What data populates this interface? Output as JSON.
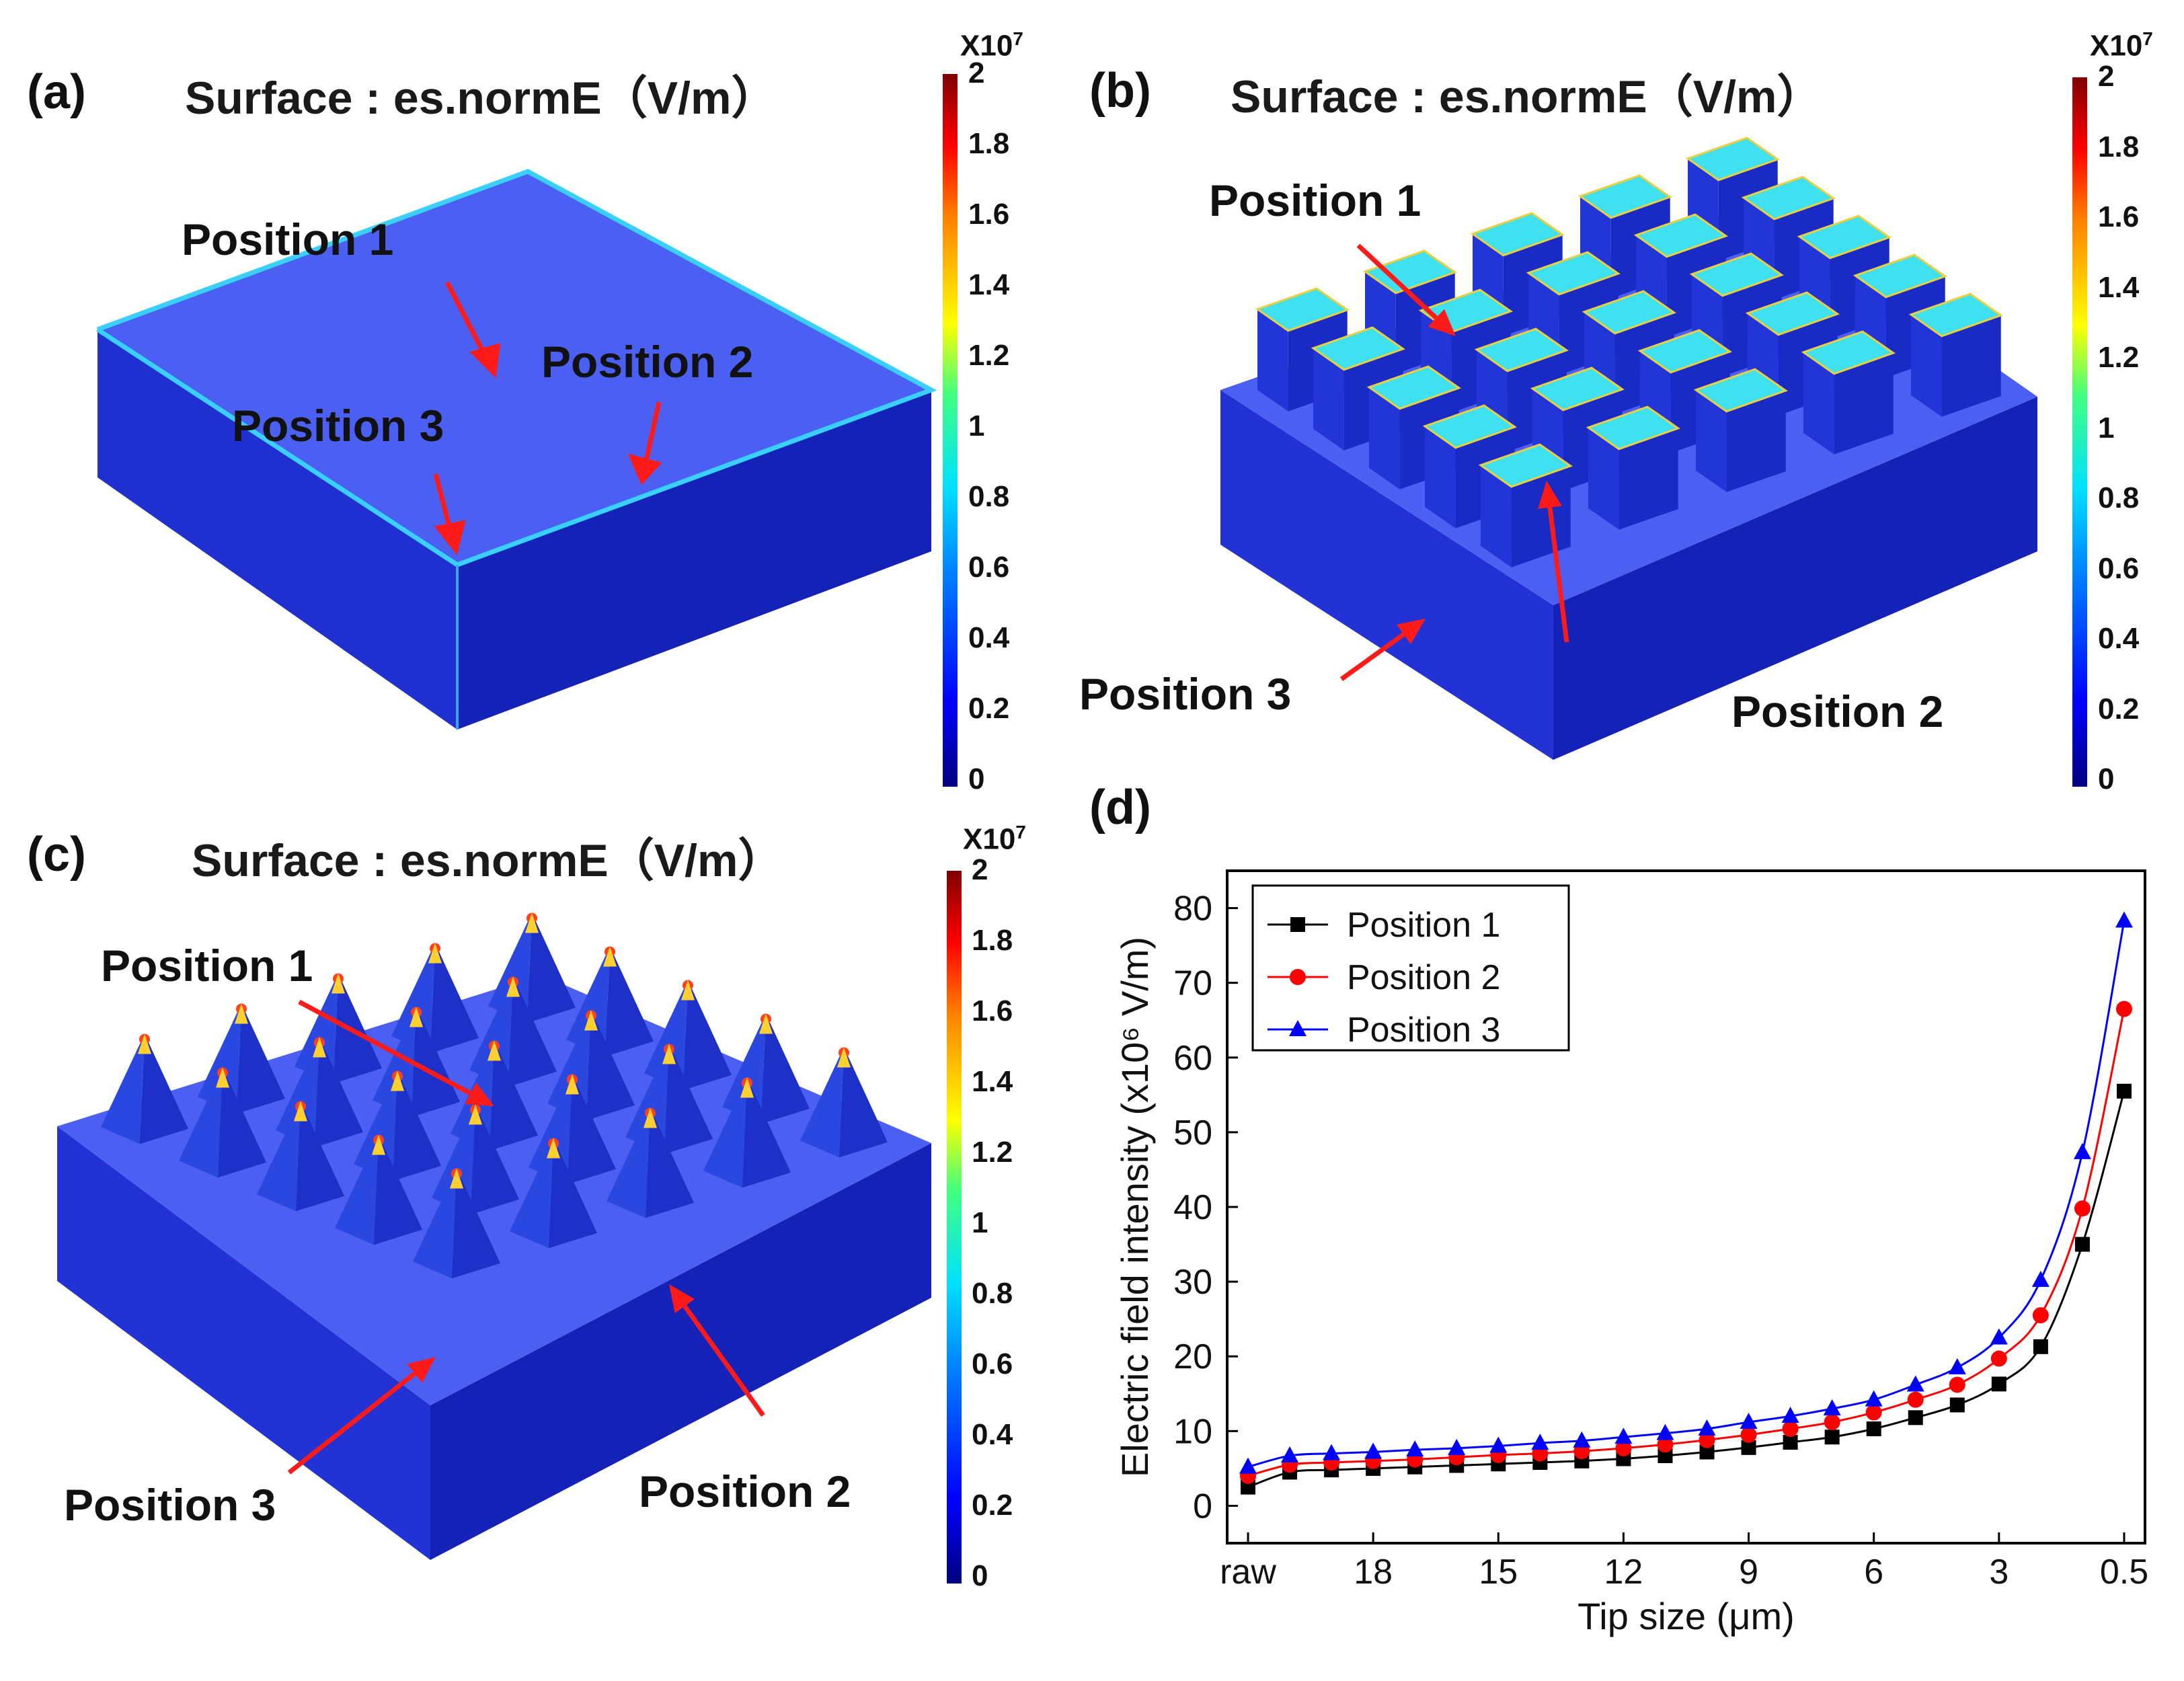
{
  "panels": {
    "a": {
      "label": "(a)",
      "title": "Surface : es.normE（V/m）",
      "positions": [
        "Position 1",
        "Position 2",
        "Position 3"
      ]
    },
    "b": {
      "label": "(b)",
      "title": "Surface : es.normE（V/m）",
      "positions": [
        "Position 1",
        "Position 2",
        "Position 3"
      ]
    },
    "c": {
      "label": "(c)",
      "title": "Surface : es.normE（V/m）",
      "positions": [
        "Position 1",
        "Position 2",
        "Position 3"
      ]
    },
    "d": {
      "label": "(d)"
    }
  },
  "colorbar": {
    "exponent_base": "X10",
    "exponent_power": "7",
    "ticks": [
      "2",
      "1.8",
      "1.6",
      "1.4",
      "1.2",
      "1",
      "0.8",
      "0.6",
      "0.4",
      "0.2",
      "0"
    ]
  },
  "colors": {
    "surface_top": "#4a5cf0",
    "surface_side": "#1a26c8",
    "surface_dark": "#0d18a0",
    "edge_glow": "#39d0ff",
    "arrow": "#ff1a1a",
    "series1": "#000000",
    "series2": "#ff0000",
    "series3": "#0000ff"
  },
  "chart_data": {
    "type": "line",
    "title": "",
    "xlabel": "Tip size (μm)",
    "ylabel": "Electric field intensity (x10⁶ V/m)",
    "ylim": [
      -5,
      85
    ],
    "yticks": [
      0,
      10,
      20,
      30,
      40,
      50,
      60,
      70,
      80
    ],
    "x_index": [
      0,
      1,
      2,
      3,
      4,
      5,
      6,
      7,
      8,
      9,
      10,
      11,
      12,
      13,
      14,
      15,
      16,
      17,
      18,
      19,
      20,
      21
    ],
    "xtick_positions": [
      0,
      3,
      6,
      9,
      12,
      15,
      18,
      21
    ],
    "xtick_labels": [
      "raw",
      "18",
      "15",
      "12",
      "9",
      "6",
      "3",
      "0.5"
    ],
    "legend_position": "top-left",
    "series": [
      {
        "name": "Position 1",
        "marker": "square",
        "values": [
          2.5,
          4.5,
          4.8,
          5.0,
          5.2,
          5.4,
          5.6,
          5.8,
          6.0,
          6.3,
          6.7,
          7.2,
          7.8,
          8.5,
          9.2,
          10.3,
          11.8,
          13.5,
          16.3,
          21.3,
          35.0,
          55.5
        ]
      },
      {
        "name": "Position 2",
        "marker": "circle",
        "values": [
          4.0,
          5.5,
          5.8,
          6.0,
          6.2,
          6.5,
          6.8,
          7.0,
          7.3,
          7.7,
          8.2,
          8.8,
          9.5,
          10.3,
          11.2,
          12.5,
          14.2,
          16.2,
          19.7,
          25.5,
          39.8,
          66.5
        ]
      },
      {
        "name": "Position 3",
        "marker": "triangle",
        "values": [
          5.2,
          6.7,
          7.0,
          7.2,
          7.5,
          7.7,
          8.0,
          8.4,
          8.7,
          9.2,
          9.7,
          10.3,
          11.2,
          12.0,
          13.0,
          14.2,
          16.2,
          18.5,
          22.5,
          30.2,
          47.3,
          78.3
        ]
      }
    ]
  }
}
